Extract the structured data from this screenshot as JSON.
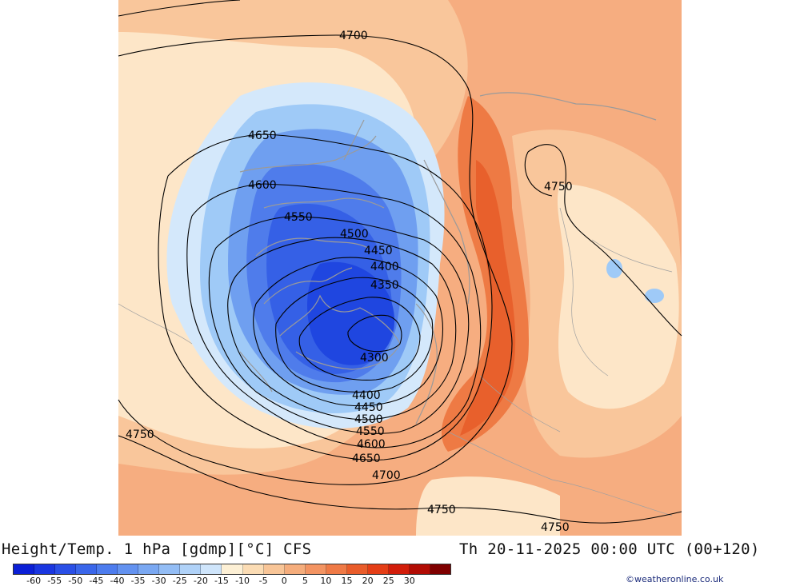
{
  "title": {
    "left": "Height/Temp. 1 hPa [gdmp][°C] CFS",
    "right": "Th 20-11-2025 00:00 UTC (00+120)"
  },
  "credit": "©weatheronline.co.uk",
  "colorbar": {
    "labels": [
      "-60",
      "-55",
      "-50",
      "-45",
      "-40",
      "-35",
      "-30",
      "-25",
      "-20",
      "-15",
      "-10",
      "-5",
      "0",
      "5",
      "10",
      "15",
      "20",
      "25",
      "30"
    ],
    "colors": [
      "#0b1fd6",
      "#1a36e0",
      "#2a4fe6",
      "#3a66ea",
      "#4d7cee",
      "#6392f0",
      "#7aa8f2",
      "#93bdf5",
      "#b0d2f8",
      "#cfe5fb",
      "#fdf0d5",
      "#fbdcb4",
      "#f8c597",
      "#f5ad7c",
      "#f39462",
      "#ef7a46",
      "#e95c2a",
      "#e43e16",
      "#d21d0a",
      "#b20c04",
      "#7f0000"
    ]
  },
  "map": {
    "contour_labels": [
      "4700",
      "4650",
      "4600",
      "4550",
      "4500",
      "4450",
      "4400",
      "4350",
      "4300",
      "4400",
      "4450",
      "4500",
      "4550",
      "4600",
      "4650",
      "4700",
      "4750",
      "4750",
      "4750",
      "4750"
    ],
    "colors": {
      "background": "#f6ad80",
      "light_orange": "#f9c69b",
      "cream": "#fde6c8",
      "pale_blue": "#d4e8fb",
      "light_blue": "#9fcaf7",
      "mid_blue": "#6f9ff0",
      "blue": "#4f7ceb",
      "deep_blue": "#3560e6",
      "core_blue": "#1f46e0",
      "warm_band": "#ee7a44",
      "hot_band": "#e8602c"
    }
  }
}
